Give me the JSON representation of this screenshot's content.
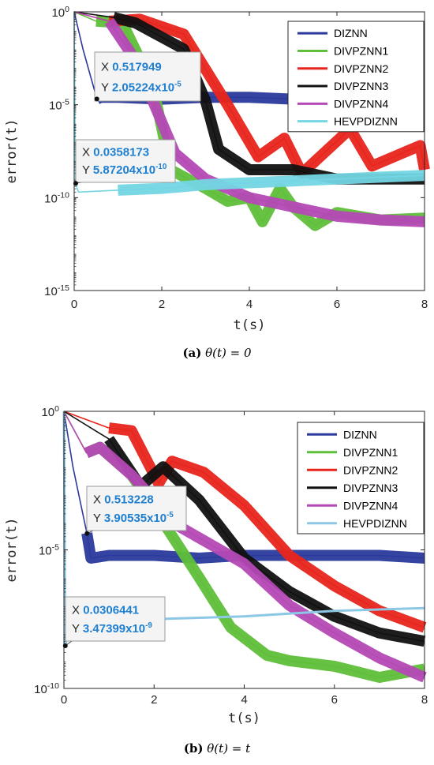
{
  "chart_data": [
    {
      "type": "line",
      "panel": "a",
      "ylabel": "error(t)",
      "xlabel": "t(s)",
      "y_scale": "log",
      "xlim": [
        0,
        8
      ],
      "ylim_exp": [
        -15,
        0
      ],
      "xticks": [
        "0",
        "2",
        "4",
        "6",
        "8"
      ],
      "yticks": [
        {
          "exp": 0,
          "label_base": "10",
          "label_exp": "0"
        },
        {
          "exp": -5,
          "label_base": "10",
          "label_exp": "-5"
        },
        {
          "exp": -10,
          "label_base": "10",
          "label_exp": "-10"
        },
        {
          "exp": -15,
          "label_base": "10",
          "label_exp": "-15"
        }
      ],
      "legend": "top-right",
      "series": [
        {
          "name": "DIZNN",
          "color": "#2b3a9c",
          "band": true,
          "points": [
            [
              0,
              0
            ],
            [
              0.2,
              -2
            ],
            [
              0.52,
              -4.7
            ],
            [
              0.6,
              -4.6
            ],
            [
              1,
              -4.6
            ],
            [
              2,
              -4.7
            ],
            [
              3,
              -4.6
            ],
            [
              4,
              -4.6
            ],
            [
              5,
              -4.7
            ],
            [
              6,
              -4.7
            ],
            [
              7,
              -4.7
            ],
            [
              8,
              -4.8
            ]
          ]
        },
        {
          "name": "DIVPZNN1",
          "color": "#5fbf3a",
          "band": true,
          "points": [
            [
              0,
              0
            ],
            [
              0.5,
              -0.5
            ],
            [
              1.1,
              -0.6
            ],
            [
              1.8,
              -4
            ],
            [
              2.2,
              -8.5
            ],
            [
              3,
              -9.5
            ],
            [
              3.5,
              -10.2
            ],
            [
              4,
              -10
            ],
            [
              4.3,
              -11.3
            ],
            [
              4.7,
              -9.5
            ],
            [
              5,
              -10.5
            ],
            [
              5.5,
              -11.5
            ],
            [
              6,
              -10.8
            ],
            [
              7,
              -11.2
            ],
            [
              8,
              -11.1
            ]
          ]
        },
        {
          "name": "DIVPZNN2",
          "color": "#e8251c",
          "band": true,
          "points": [
            [
              0,
              0
            ],
            [
              0.8,
              -0.5
            ],
            [
              1.5,
              -0.4
            ],
            [
              2.5,
              -1.2
            ],
            [
              3.5,
              -5
            ],
            [
              4.2,
              -7.8
            ],
            [
              4.8,
              -6.8
            ],
            [
              5.2,
              -8.7
            ],
            [
              6.3,
              -6.3
            ],
            [
              6.8,
              -8.3
            ],
            [
              7.9,
              -7.2
            ],
            [
              8,
              -8.5
            ]
          ]
        },
        {
          "name": "DIVPZNN3",
          "color": "#111111",
          "band": true,
          "points": [
            [
              0,
              0
            ],
            [
              0.9,
              -0.3
            ],
            [
              1.4,
              -0.6
            ],
            [
              2.5,
              -2
            ],
            [
              3,
              -4.8
            ],
            [
              3.3,
              -7.4
            ],
            [
              4,
              -8.5
            ],
            [
              5,
              -8.5
            ],
            [
              6,
              -9
            ],
            [
              7,
              -9
            ],
            [
              8,
              -9
            ]
          ]
        },
        {
          "name": "DIVPZNN4",
          "color": "#b449b5",
          "band": true,
          "points": [
            [
              0,
              0
            ],
            [
              0.8,
              -0.5
            ],
            [
              1.4,
              -2.6
            ],
            [
              2.3,
              -7.6
            ],
            [
              3,
              -9
            ],
            [
              4,
              -10
            ],
            [
              5,
              -10.5
            ],
            [
              6,
              -11
            ],
            [
              7,
              -11.2
            ],
            [
              8,
              -11.3
            ]
          ]
        },
        {
          "name": "HEVPDIZNN",
          "color": "#73d6e3",
          "band": true,
          "points": [
            [
              0,
              0
            ],
            [
              0.03,
              -9.25
            ],
            [
              0.1,
              -9.7
            ],
            [
              1,
              -9.6
            ],
            [
              2,
              -9.5
            ],
            [
              3,
              -9.3
            ],
            [
              4,
              -9.2
            ],
            [
              5,
              -9.1
            ],
            [
              6,
              -9
            ],
            [
              7,
              -8.9
            ],
            [
              8,
              -8.8
            ]
          ]
        }
      ],
      "annotations": [
        {
          "x_label": "X",
          "x_value": "0.517949",
          "y_label": "Y",
          "y_value_base": "2.05224x10",
          "y_value_exp": "-5",
          "point": [
            0.518,
            -4.69
          ]
        },
        {
          "x_label": "X",
          "x_value": "0.0358173",
          "y_label": "Y",
          "y_value_base": "5.87204x10",
          "y_value_exp": "-10",
          "point": [
            0.036,
            -9.23
          ]
        }
      ]
    },
    {
      "type": "line",
      "panel": "b",
      "ylabel": "error(t)",
      "xlabel": "t(s)",
      "y_scale": "log",
      "xlim": [
        0,
        8
      ],
      "ylim_exp": [
        -10,
        0
      ],
      "xticks": [
        "0",
        "2",
        "4",
        "6",
        "8"
      ],
      "yticks": [
        {
          "exp": 0,
          "label_base": "10",
          "label_exp": "0"
        },
        {
          "exp": -5,
          "label_base": "10",
          "label_exp": "-5"
        },
        {
          "exp": -10,
          "label_base": "10",
          "label_exp": "-10"
        }
      ],
      "legend": "top-right",
      "series": [
        {
          "name": "DIZNN",
          "color": "#2b3a9c",
          "band": true,
          "points": [
            [
              0,
              0
            ],
            [
              0.2,
              -2
            ],
            [
              0.51,
              -4.4
            ],
            [
              0.6,
              -5.3
            ],
            [
              1,
              -5.2
            ],
            [
              2,
              -5.2
            ],
            [
              3,
              -5.3
            ],
            [
              4,
              -5.2
            ],
            [
              5,
              -5.2
            ],
            [
              6,
              -5.2
            ],
            [
              7,
              -5.2
            ],
            [
              8,
              -5.3
            ]
          ]
        },
        {
          "name": "DIVPZNN1",
          "color": "#5fbf3a",
          "band": true,
          "points": [
            [
              0,
              0
            ],
            [
              0.5,
              -1.5
            ],
            [
              0.8,
              -1.3
            ],
            [
              1.5,
              -2.3
            ],
            [
              2.2,
              -4
            ],
            [
              3,
              -6
            ],
            [
              3.7,
              -7.8
            ],
            [
              4.5,
              -8.8
            ],
            [
              5,
              -9
            ],
            [
              6,
              -9.2
            ],
            [
              7,
              -9.6
            ],
            [
              8,
              -9.3
            ]
          ]
        },
        {
          "name": "DIVPZNN2",
          "color": "#e8251c",
          "band": true,
          "points": [
            [
              0,
              0
            ],
            [
              1,
              -0.6
            ],
            [
              1.5,
              -0.7
            ],
            [
              2.1,
              -2.6
            ],
            [
              2.4,
              -1.8
            ],
            [
              3.1,
              -2.2
            ],
            [
              4,
              -3.4
            ],
            [
              5,
              -5.2
            ],
            [
              6,
              -6.3
            ],
            [
              7,
              -7.2
            ],
            [
              8,
              -7.8
            ]
          ]
        },
        {
          "name": "DIVPZNN3",
          "color": "#111111",
          "band": true,
          "points": [
            [
              0,
              0
            ],
            [
              1,
              -1
            ],
            [
              1.7,
              -2.7
            ],
            [
              2.2,
              -2
            ],
            [
              3,
              -3.2
            ],
            [
              4,
              -5.3
            ],
            [
              5,
              -6.5
            ],
            [
              6,
              -7.4
            ],
            [
              7,
              -8
            ],
            [
              8,
              -8.3
            ]
          ]
        },
        {
          "name": "DIVPZNN4",
          "color": "#b449b5",
          "band": true,
          "points": [
            [
              0,
              0
            ],
            [
              0.5,
              -1.5
            ],
            [
              0.8,
              -1.3
            ],
            [
              1.5,
              -2.3
            ],
            [
              2.5,
              -4.1
            ],
            [
              4,
              -5.5
            ],
            [
              5,
              -7
            ],
            [
              6,
              -8
            ],
            [
              7,
              -8.9
            ],
            [
              8,
              -9.6
            ]
          ]
        },
        {
          "name": "HEVPDIZNN",
          "color": "#8cc8e6",
          "band": false,
          "points": [
            [
              0,
              0
            ],
            [
              0.03,
              -8.46
            ],
            [
              0.1,
              -7.9
            ],
            [
              1,
              -7.6
            ],
            [
              2,
              -7.5
            ],
            [
              3,
              -7.45
            ],
            [
              4,
              -7.4
            ],
            [
              5,
              -7.3
            ],
            [
              6,
              -7.2
            ],
            [
              7,
              -7.15
            ],
            [
              8,
              -7.1
            ]
          ]
        }
      ],
      "annotations": [
        {
          "x_label": "X",
          "x_value": "0.513228",
          "y_label": "Y",
          "y_value_base": "3.90535x10",
          "y_value_exp": "-5",
          "point": [
            0.513,
            -4.41
          ]
        },
        {
          "x_label": "X",
          "x_value": "0.0306441",
          "y_label": "Y",
          "y_value_base": "3.47399x10",
          "y_value_exp": "-9",
          "point": [
            0.031,
            -8.46
          ]
        }
      ]
    }
  ],
  "captions": [
    {
      "label": "(a)",
      "math": "θ(t) = 0"
    },
    {
      "label": "(b)",
      "math": "θ(t) = t"
    }
  ]
}
